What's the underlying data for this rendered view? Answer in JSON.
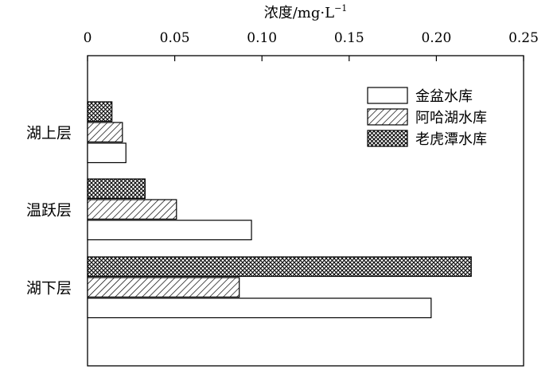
{
  "chart_data": {
    "type": "bar",
    "orientation": "horizontal",
    "xlabel": "浓度/mg·L",
    "xlabel_sup": "−1",
    "xlim": [
      0,
      0.25
    ],
    "xticks": [
      "0",
      "0.05",
      "0.10",
      "0.15",
      "0.20",
      "0.25"
    ],
    "xtick_values": [
      0,
      0.05,
      0.1,
      0.15,
      0.2,
      0.25
    ],
    "categories": [
      "湖上层",
      "温跃层",
      "湖下层"
    ],
    "series": [
      {
        "name": "老虎潭水库",
        "values": [
          0.014,
          0.033,
          0.22
        ],
        "pattern": "crosshatch"
      },
      {
        "name": "阿哈湖水库",
        "values": [
          0.02,
          0.051,
          0.087
        ],
        "pattern": "diagonal"
      },
      {
        "name": "金盆水库",
        "values": [
          0.022,
          0.094,
          0.197
        ],
        "pattern": "none"
      }
    ],
    "legend": {
      "placement": "top-right",
      "entries": [
        "金盆水库",
        "阿哈湖水库",
        "老虎潭水库"
      ]
    },
    "grid": false
  }
}
